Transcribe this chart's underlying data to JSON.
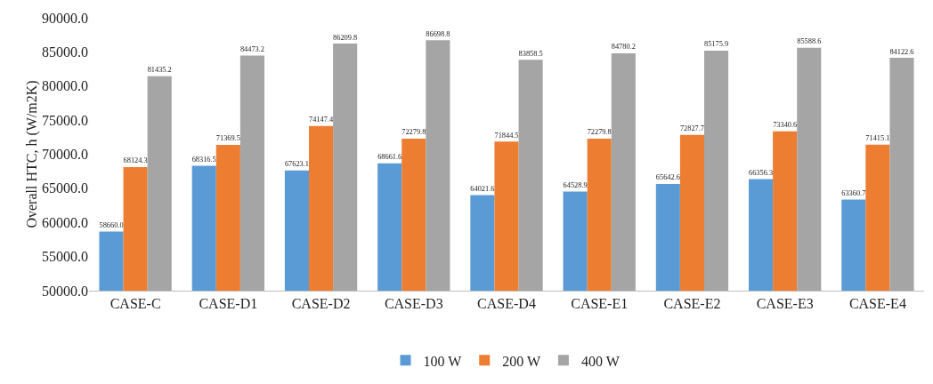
{
  "chart_data": {
    "type": "bar",
    "ylabel": "Overall HTC, h (W/m2K)",
    "categories": [
      "CASE-C",
      "CASE-D1",
      "CASE-D2",
      "CASE-D3",
      "CASE-D4",
      "CASE-E1",
      "CASE-E2",
      "CASE-E3",
      "CASE-E4"
    ],
    "series": [
      {
        "name": "100 W",
        "color": "#5b9bd5",
        "values": [
          58660.0,
          68316.5,
          67623.1,
          68661.6,
          64021.6,
          64528.9,
          65642.6,
          66356.3,
          63360.7
        ],
        "value_labels": [
          "58660.0",
          "68316.5",
          "67623.1",
          "68661.6",
          "64021.6",
          "64528.9",
          "65642.6",
          "66356.3",
          "63360.7"
        ]
      },
      {
        "name": "200 W",
        "color": "#ed7d31",
        "values": [
          68124.3,
          71369.5,
          74147.4,
          72279.8,
          71844.5,
          72279.8,
          72827.7,
          73340.6,
          71415.1
        ],
        "value_labels": [
          "68124.3",
          "71369.5",
          "74147.4",
          "72279.8",
          "71844.5",
          "72279.8",
          "72827.7",
          "73340.6",
          "71415.1"
        ]
      },
      {
        "name": "400 W",
        "color": "#a5a5a5",
        "values": [
          81435.2,
          84473.2,
          86209.8,
          86698.8,
          83858.5,
          84780.2,
          85175.9,
          85588.6,
          84122.6
        ],
        "value_labels": [
          "81435.2",
          "84473.2",
          "86209.8",
          "86698.8",
          "83858.5",
          "84780.2",
          "85175.9",
          "85588.6",
          "84122.6"
        ]
      }
    ],
    "ylim": [
      50000,
      90000
    ],
    "yticks": [
      {
        "value": 50000,
        "label": "50000.0"
      },
      {
        "value": 55000,
        "label": "55000.0"
      },
      {
        "value": 60000,
        "label": "60000.0"
      },
      {
        "value": 65000,
        "label": "65000.0"
      },
      {
        "value": 70000,
        "label": "70000.0"
      },
      {
        "value": 75000,
        "label": "75000.0"
      },
      {
        "value": 80000,
        "label": "80000.0"
      },
      {
        "value": 85000,
        "label": "85000.0"
      },
      {
        "value": 90000,
        "label": "90000.0"
      }
    ],
    "grid": false,
    "legend": "bottom"
  }
}
